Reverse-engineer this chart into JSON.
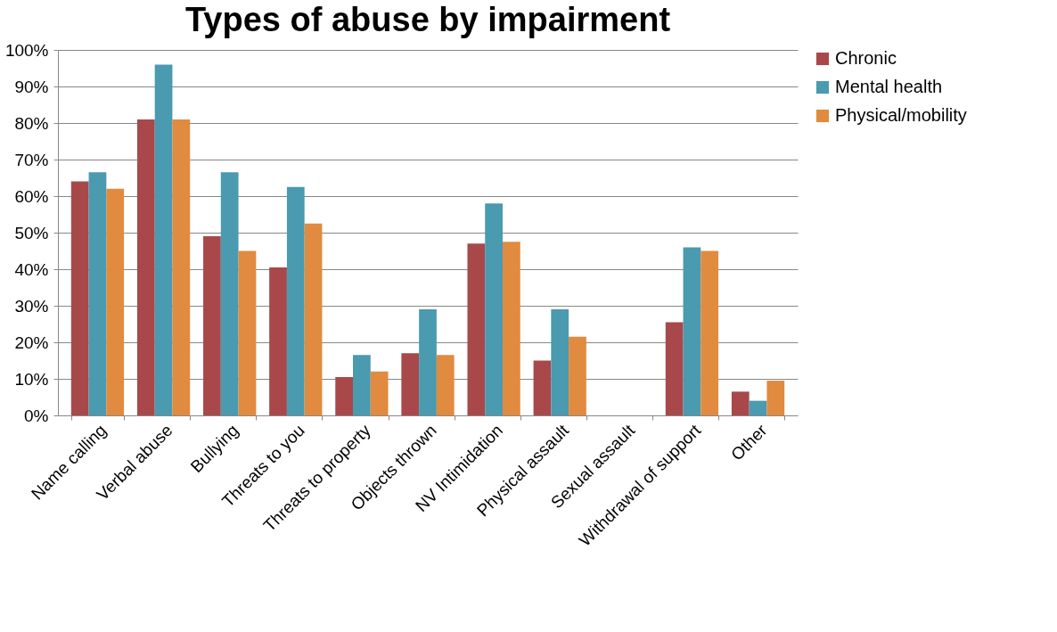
{
  "chart_data": {
    "type": "bar",
    "title": "Types of abuse by impairment",
    "categories": [
      "Name calling",
      "Verbal abuse",
      "Bullying",
      "Threats to you",
      "Threats to property",
      "Objects thrown",
      "NV Intimidation",
      "Physical assault",
      "Sexual assault",
      "Withdrawal of support",
      "Other"
    ],
    "series": [
      {
        "name": "Chronic",
        "color": "#a9484a",
        "values": [
          64,
          81,
          49,
          40.5,
          10.5,
          17,
          47,
          15,
          0,
          25.5,
          6.5
        ]
      },
      {
        "name": "Mental health",
        "color": "#4a9ab0",
        "values": [
          66.5,
          96,
          66.5,
          62.5,
          16.5,
          29,
          58,
          29,
          0,
          46,
          4
        ]
      },
      {
        "name": "Physical/mobility",
        "color": "#e08b3f",
        "values": [
          62,
          81,
          45,
          52.5,
          12,
          16.5,
          47.5,
          21.5,
          0,
          45,
          9.5
        ]
      }
    ],
    "ylim": [
      0,
      100
    ],
    "yticks": [
      {
        "value": 0,
        "label": "0%"
      },
      {
        "value": 10,
        "label": "10%"
      },
      {
        "value": 20,
        "label": "20%"
      },
      {
        "value": 30,
        "label": "30%"
      },
      {
        "value": 40,
        "label": "40%"
      },
      {
        "value": 50,
        "label": "50%"
      },
      {
        "value": 60,
        "label": "60%"
      },
      {
        "value": 70,
        "label": "70%"
      },
      {
        "value": 80,
        "label": "80%"
      },
      {
        "value": 90,
        "label": "90%"
      },
      {
        "value": 100,
        "label": "100%"
      }
    ],
    "grid": "y",
    "legend": "right"
  }
}
